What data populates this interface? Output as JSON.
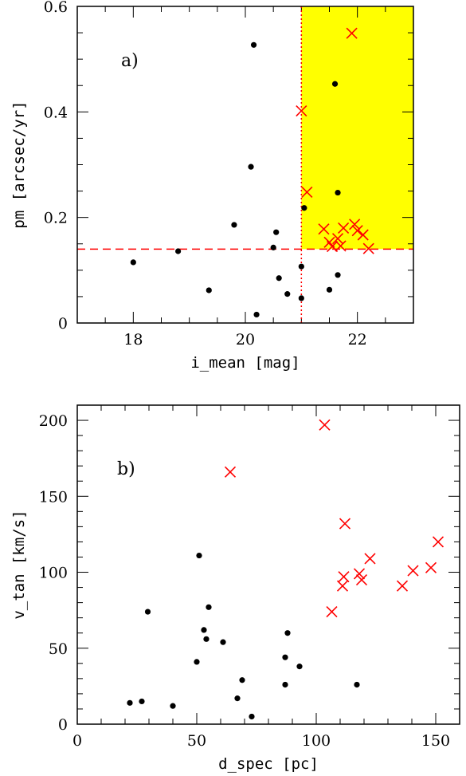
{
  "chart_data": [
    {
      "type": "scatter",
      "panel_label": "a)",
      "xlabel": "i_mean [mag]",
      "ylabel": "pm [arcsec/yr]",
      "xlim": [
        17,
        23
      ],
      "ylim": [
        0,
        0.6
      ],
      "x_ticks": [
        18,
        20,
        22
      ],
      "y_ticks": [
        0,
        0.2,
        0.4,
        0.6
      ],
      "x_tick_labels": [
        "18",
        "20",
        "22"
      ],
      "y_tick_labels": [
        "0",
        "0.2",
        "0.4",
        "0.6"
      ],
      "series": [
        {
          "marker": "dot",
          "color": "#000000",
          "points": [
            [
              18.0,
              0.115
            ],
            [
              18.8,
              0.136
            ],
            [
              19.35,
              0.062
            ],
            [
              19.8,
              0.186
            ],
            [
              20.1,
              0.296
            ],
            [
              20.15,
              0.527
            ],
            [
              20.2,
              0.016
            ],
            [
              20.5,
              0.143
            ],
            [
              20.55,
              0.172
            ],
            [
              20.6,
              0.085
            ],
            [
              20.75,
              0.055
            ],
            [
              21.0,
              0.107
            ],
            [
              21.0,
              0.047
            ],
            [
              21.05,
              0.218
            ],
            [
              21.5,
              0.063
            ],
            [
              21.6,
              0.453
            ],
            [
              21.65,
              0.091
            ],
            [
              21.65,
              0.247
            ]
          ]
        },
        {
          "marker": "cross",
          "color": "#ff0000",
          "points": [
            [
              21.0,
              0.402
            ],
            [
              21.1,
              0.248
            ],
            [
              21.4,
              0.178
            ],
            [
              21.5,
              0.153
            ],
            [
              21.55,
              0.145
            ],
            [
              21.65,
              0.16
            ],
            [
              21.75,
              0.18
            ],
            [
              21.7,
              0.146
            ],
            [
              21.9,
              0.549
            ],
            [
              21.95,
              0.187
            ],
            [
              22.0,
              0.175
            ],
            [
              22.1,
              0.167
            ],
            [
              22.2,
              0.141
            ]
          ]
        }
      ],
      "threshold_x": 21.0,
      "threshold_y": 0.14,
      "highlight_color": "#ffff00",
      "threshold_color": "#ff0000"
    },
    {
      "type": "scatter",
      "panel_label": "b)",
      "xlabel": "d_spec [pc]",
      "ylabel": "v_tan [km/s]",
      "xlim": [
        0,
        160
      ],
      "ylim": [
        0,
        210
      ],
      "x_ticks": [
        0,
        50,
        100,
        150
      ],
      "y_ticks": [
        0,
        50,
        100,
        150,
        200
      ],
      "x_tick_labels": [
        "0",
        "50",
        "100",
        "150"
      ],
      "y_tick_labels": [
        "0",
        "50",
        "100",
        "150",
        "200"
      ],
      "series": [
        {
          "marker": "dot",
          "color": "#000000",
          "points": [
            [
              22,
              14
            ],
            [
              27,
              15
            ],
            [
              29.5,
              74
            ],
            [
              40,
              12
            ],
            [
              50,
              41
            ],
            [
              51,
              111
            ],
            [
              53,
              62
            ],
            [
              54,
              56
            ],
            [
              55,
              77
            ],
            [
              61,
              54
            ],
            [
              67,
              17
            ],
            [
              69,
              29
            ],
            [
              73,
              5
            ],
            [
              87,
              26
            ],
            [
              87,
              44
            ],
            [
              88,
              60
            ],
            [
              93,
              38
            ],
            [
              117,
              26
            ]
          ]
        },
        {
          "marker": "cross",
          "color": "#ff0000",
          "points": [
            [
              64,
              166
            ],
            [
              103.5,
              197
            ],
            [
              106.5,
              74
            ],
            [
              111,
              91
            ],
            [
              111.5,
              97
            ],
            [
              112,
              132
            ],
            [
              118,
              99
            ],
            [
              119,
              95
            ],
            [
              122.5,
              109
            ],
            [
              136,
              91
            ],
            [
              140.5,
              101
            ],
            [
              148,
              103
            ],
            [
              151,
              120
            ]
          ]
        }
      ]
    }
  ]
}
